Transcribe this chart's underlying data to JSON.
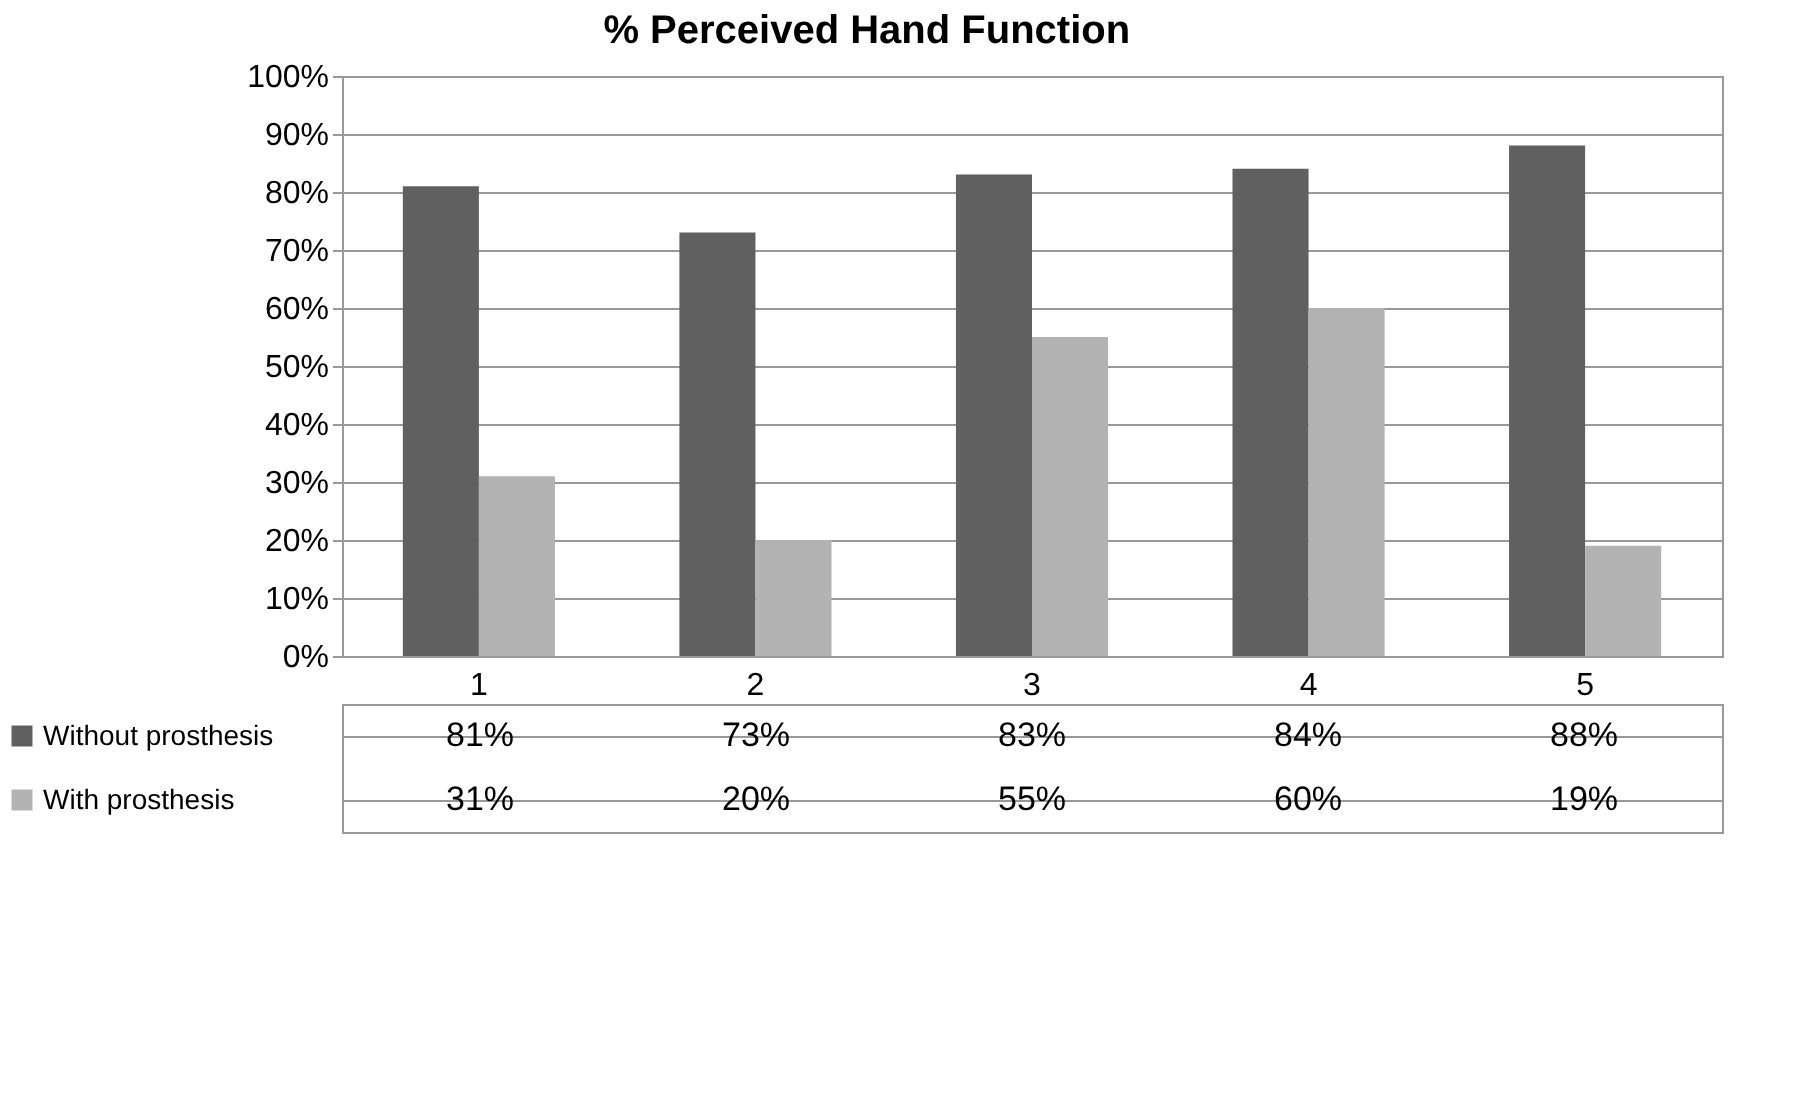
{
  "chart_data": {
    "type": "bar",
    "title": "% Perceived Hand Function",
    "categories": [
      "1",
      "2",
      "3",
      "4",
      "5"
    ],
    "series": [
      {
        "name": "Without prosthesis",
        "color": "#606060",
        "values": [
          81,
          73,
          83,
          84,
          88
        ],
        "value_labels": [
          "81%",
          "73%",
          "83%",
          "84%",
          "88%"
        ]
      },
      {
        "name": "With prosthesis",
        "color": "#b3b3b3",
        "values": [
          31,
          20,
          55,
          60,
          19
        ],
        "value_labels": [
          "31%",
          "20%",
          "55%",
          "60%",
          "19%"
        ]
      }
    ],
    "ylim": [
      0,
      100
    ],
    "yticks": [
      {
        "value": 0,
        "label": "0%"
      },
      {
        "value": 10,
        "label": "10%"
      },
      {
        "value": 20,
        "label": "20%"
      },
      {
        "value": 30,
        "label": "30%"
      },
      {
        "value": 40,
        "label": "40%"
      },
      {
        "value": 50,
        "label": "50%"
      },
      {
        "value": 60,
        "label": "60%"
      },
      {
        "value": 70,
        "label": "70%"
      },
      {
        "value": 80,
        "label": "80%"
      },
      {
        "value": 90,
        "label": "90%"
      },
      {
        "value": 100,
        "label": "100%"
      }
    ],
    "grid": "y",
    "legend": "bottom left"
  }
}
